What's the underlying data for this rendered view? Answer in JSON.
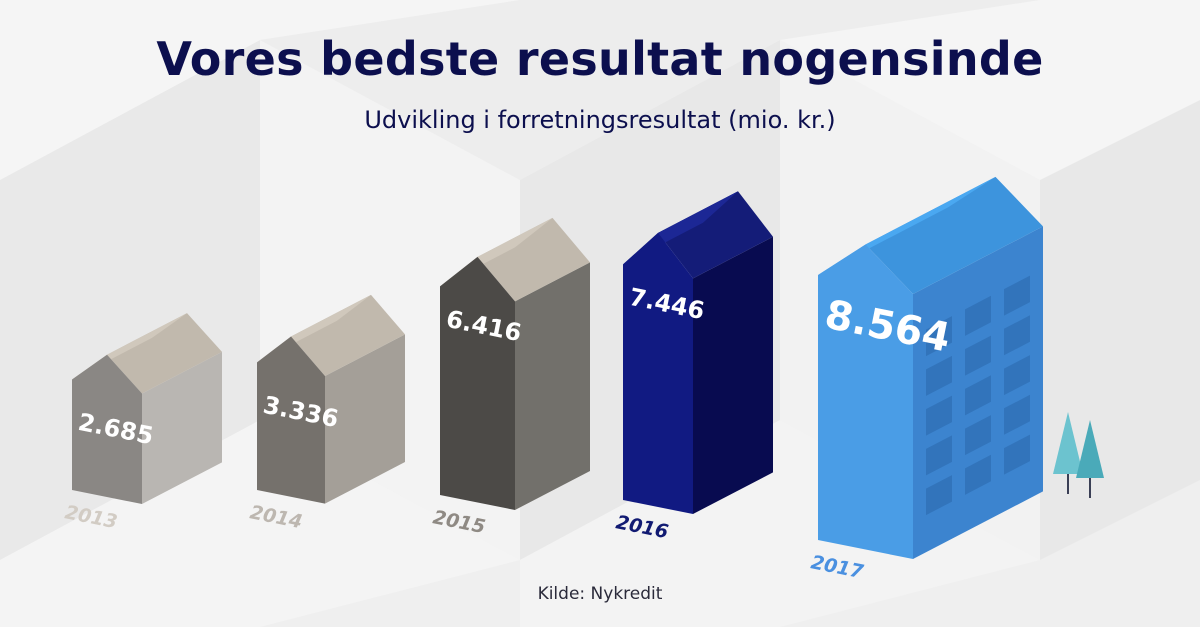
{
  "header": {
    "title": "Vores bedste resultat nogensinde",
    "subtitle": "Udvikling i forretningsresultat (mio. kr.)"
  },
  "footer": {
    "source": "Kilde: Nykredit"
  },
  "chart_data": {
    "type": "bar",
    "title": "Vores bedste resultat nogensinde",
    "subtitle": "Udvikling i forretningsresultat (mio. kr.)",
    "categories": [
      "2013",
      "2014",
      "2015",
      "2016",
      "2017"
    ],
    "values": [
      2685,
      3336,
      6416,
      7446,
      8564
    ],
    "value_labels": [
      "2.685",
      "3.336",
      "6.416",
      "7.446",
      "8.564"
    ],
    "unit": "mio. kr.",
    "source": "Kilde: Nykredit",
    "grid": false,
    "legend": "none",
    "colors": {
      "2013": {
        "front": "#8a8784",
        "side": "#b9b6b2",
        "roof": "#d0c8bc",
        "roof_top": "#c1b9ad",
        "year": "#d2ccc4"
      },
      "2014": {
        "front": "#75716c",
        "side": "#a49f98",
        "roof": "#d0c8bc",
        "roof_top": "#c1b9ad",
        "year": "#bdb7b0"
      },
      "2015": {
        "front": "#4c4a47",
        "side": "#72706b",
        "roof": "#d0c8bc",
        "roof_top": "#c1b9ad",
        "year": "#8f8a84"
      },
      "2016": {
        "front": "#111a82",
        "side": "#080b50",
        "roof": "#1c2795",
        "roof_top": "#141c78",
        "year": "#111a72"
      },
      "2017": {
        "front": "#4a9de6",
        "side": "#3c84cf",
        "roof": "#4aa8f1",
        "roof_top": "#3d94dd",
        "year": "#4a90e0"
      }
    },
    "window_color": "#2f6fb4",
    "tree_colors": [
      "#6cc3cf",
      "#4aaab9"
    ]
  }
}
